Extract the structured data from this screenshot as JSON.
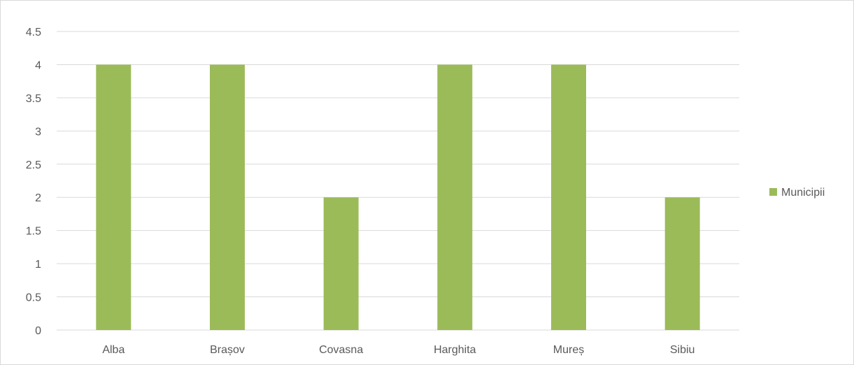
{
  "chart_data": {
    "type": "bar",
    "categories": [
      "Alba",
      "Brașov",
      "Covasna",
      "Harghita",
      "Mureș",
      "Sibiu"
    ],
    "series": [
      {
        "name": "Municipii",
        "values": [
          4,
          4,
          2,
          4,
          4,
          2
        ],
        "color": "#9bbb59"
      }
    ],
    "ylim": [
      0,
      4.5
    ],
    "yticks": [
      "0",
      "0.5",
      "1",
      "1.5",
      "2",
      "2.5",
      "3",
      "3.5",
      "4",
      "4.5"
    ],
    "grid": true,
    "legend_position": "right",
    "gridline_color": "#d9d9d9",
    "axis_text_color": "#595959"
  }
}
